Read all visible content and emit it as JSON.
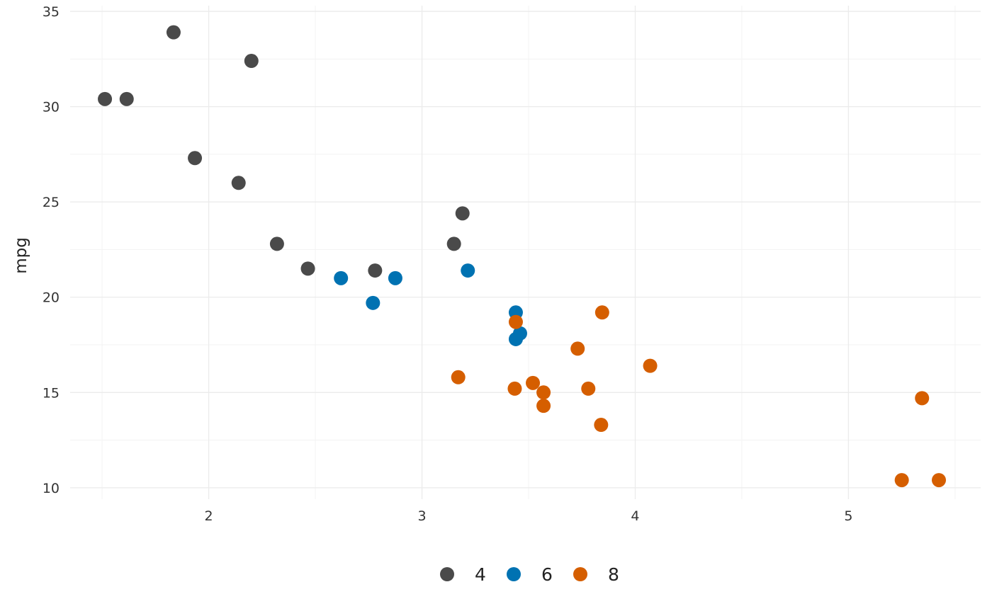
{
  "chart_data": {
    "type": "scatter",
    "title": "",
    "xlabel": "",
    "ylabel": "mpg",
    "xlim": [
      1.35,
      5.62
    ],
    "ylim": [
      9.4,
      35.3
    ],
    "x_ticks": [
      2,
      3,
      4,
      5
    ],
    "y_ticks": [
      10,
      15,
      20,
      25,
      30,
      35
    ],
    "x_tick_labels": [
      "2",
      "3",
      "4",
      "5"
    ],
    "y_tick_labels": [
      "10",
      "15",
      "20",
      "25",
      "30",
      "35"
    ],
    "x_minor_ticks": [
      1.5,
      2.5,
      3.5,
      4.5,
      5.5
    ],
    "y_minor_ticks": [
      12.5,
      17.5,
      22.5,
      27.5,
      32.5
    ],
    "grid": true,
    "legend_position": "bottom",
    "series": [
      {
        "name": "4",
        "color": "#4a4a4a",
        "x": [
          1.513,
          1.615,
          1.835,
          1.935,
          2.14,
          2.2,
          2.32,
          2.465,
          2.78,
          3.15,
          3.19
        ],
        "y": [
          30.4,
          30.4,
          33.9,
          27.3,
          26.0,
          32.4,
          22.8,
          21.5,
          21.4,
          22.8,
          24.4
        ]
      },
      {
        "name": "6",
        "color": "#0072b2",
        "x": [
          2.62,
          2.77,
          2.875,
          3.215,
          3.44,
          3.44,
          3.46
        ],
        "y": [
          21.0,
          19.7,
          21.0,
          21.4,
          19.2,
          17.8,
          18.1
        ]
      },
      {
        "name": "8",
        "color": "#d55e00",
        "x": [
          3.17,
          3.435,
          3.44,
          3.52,
          3.57,
          3.57,
          3.73,
          3.78,
          3.84,
          3.845,
          4.07,
          5.25,
          5.345,
          5.424
        ],
        "y": [
          15.8,
          15.2,
          18.7,
          15.5,
          15.0,
          14.3,
          17.3,
          15.2,
          13.3,
          19.2,
          16.4,
          10.4,
          14.7,
          10.4
        ]
      }
    ],
    "legend": {
      "entries": [
        "4",
        "6",
        "8"
      ],
      "colors": [
        "#4a4a4a",
        "#0072b2",
        "#d55e00"
      ]
    }
  }
}
